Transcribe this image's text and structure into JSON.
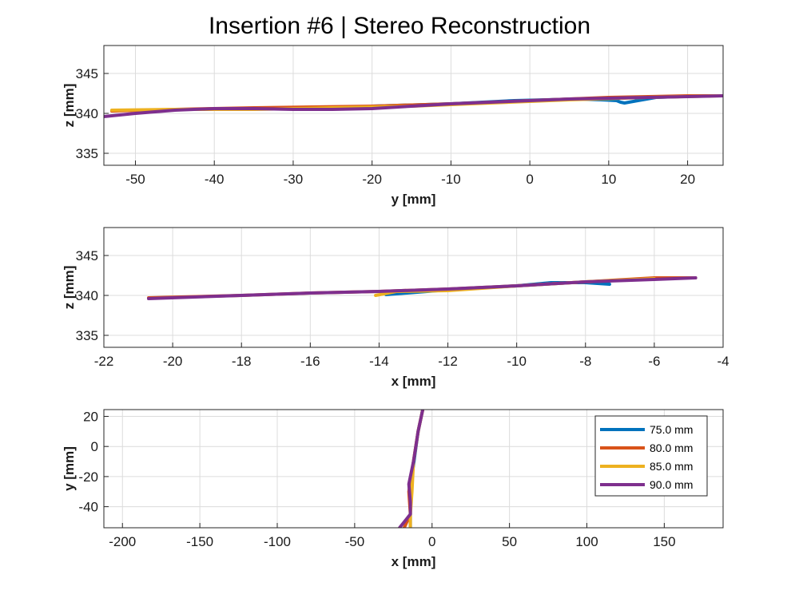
{
  "figure": {
    "title": "Insertion #6 | Stereo Reconstruction"
  },
  "series_colors": {
    "75.0 mm": "#0072bd",
    "80.0 mm": "#d95319",
    "85.0 mm": "#edb120",
    "90.0 mm": "#7e2f8e"
  },
  "chart_data": [
    {
      "type": "line",
      "xlabel": "y [mm]",
      "ylabel": "z [mm]",
      "xlim": [
        -54,
        24.5
      ],
      "ylim": [
        333.5,
        348.5
      ],
      "xticks": [
        -50,
        -40,
        -30,
        -20,
        -10,
        0,
        10,
        20
      ],
      "yticks": [
        335,
        340,
        345
      ],
      "grid": true,
      "series": [
        {
          "name": "75.0 mm",
          "points": [
            [
              -20,
              340.9
            ],
            [
              -10,
              341.2
            ],
            [
              -2,
              341.6
            ],
            [
              6,
              341.8
            ],
            [
              9,
              341.7
            ],
            [
              11,
              341.6
            ],
            [
              11.5,
              341.4
            ],
            [
              12,
              341.3
            ],
            [
              16,
              342.0
            ],
            [
              22,
              342.2
            ]
          ]
        },
        {
          "name": "80.0 mm",
          "points": [
            [
              -53,
              340.3
            ],
            [
              -45,
              340.5
            ],
            [
              -35,
              340.7
            ],
            [
              -20,
              340.9
            ],
            [
              -10,
              341.2
            ],
            [
              0,
              341.6
            ],
            [
              10,
              342.0
            ],
            [
              20,
              342.2
            ],
            [
              24.5,
              342.2
            ]
          ]
        },
        {
          "name": "85.0 mm",
          "points": [
            [
              -53,
              340.4
            ],
            [
              -45,
              340.5
            ],
            [
              -35,
              340.5
            ],
            [
              -25,
              340.7
            ],
            [
              -15,
              340.9
            ],
            [
              -5,
              341.3
            ],
            [
              5,
              341.7
            ],
            [
              15,
              342.0
            ],
            [
              24,
              342.2
            ]
          ]
        },
        {
          "name": "90.0 mm",
          "points": [
            [
              -54,
              339.6
            ],
            [
              -50,
              340.0
            ],
            [
              -45,
              340.4
            ],
            [
              -40,
              340.6
            ],
            [
              -35,
              340.6
            ],
            [
              -30,
              340.5
            ],
            [
              -25,
              340.5
            ],
            [
              -20,
              340.6
            ],
            [
              -15,
              340.9
            ],
            [
              -10,
              341.2
            ],
            [
              -5,
              341.4
            ],
            [
              0,
              341.6
            ],
            [
              5,
              341.8
            ],
            [
              10,
              341.9
            ],
            [
              15,
              342.0
            ],
            [
              20,
              342.1
            ],
            [
              24.5,
              342.2
            ]
          ]
        }
      ]
    },
    {
      "type": "line",
      "xlabel": "x [mm]",
      "ylabel": "z [mm]",
      "xlim": [
        -22,
        -4
      ],
      "ylim": [
        333.5,
        348.5
      ],
      "xticks": [
        -22,
        -20,
        -18,
        -16,
        -14,
        -12,
        -10,
        -8,
        -6,
        -4
      ],
      "yticks": [
        335,
        340,
        345
      ],
      "grid": true,
      "series": [
        {
          "name": "75.0 mm",
          "points": [
            [
              -13.8,
              340.1
            ],
            [
              -12,
              340.7
            ],
            [
              -10,
              341.2
            ],
            [
              -9,
              341.6
            ],
            [
              -8.5,
              341.6
            ],
            [
              -8,
              341.6
            ],
            [
              -7.3,
              341.4
            ]
          ]
        },
        {
          "name": "80.0 mm",
          "points": [
            [
              -20.7,
              339.7
            ],
            [
              -18,
              340.0
            ],
            [
              -16,
              340.3
            ],
            [
              -14,
              340.5
            ],
            [
              -12,
              340.8
            ],
            [
              -10,
              341.2
            ],
            [
              -8,
              341.7
            ],
            [
              -6,
              342.2
            ],
            [
              -4.8,
              342.2
            ]
          ]
        },
        {
          "name": "85.0 mm",
          "points": [
            [
              -14.1,
              340.0
            ],
            [
              -13.5,
              340.5
            ],
            [
              -12,
              340.6
            ],
            [
              -10,
              341.2
            ],
            [
              -8,
              341.7
            ],
            [
              -6,
              342.1
            ]
          ]
        },
        {
          "name": "90.0 mm",
          "points": [
            [
              -20.7,
              339.6
            ],
            [
              -18,
              340.0
            ],
            [
              -16,
              340.3
            ],
            [
              -14,
              340.5
            ],
            [
              -12,
              340.8
            ],
            [
              -10,
              341.2
            ],
            [
              -8,
              341.7
            ],
            [
              -6,
              342.0
            ],
            [
              -4.8,
              342.2
            ]
          ]
        }
      ]
    },
    {
      "type": "line",
      "xlabel": "x [mm]",
      "ylabel": "y [mm]",
      "xlim": [
        -212,
        188
      ],
      "ylim": [
        -54,
        24.5
      ],
      "xticks": [
        -200,
        -150,
        -100,
        -50,
        0,
        50,
        100,
        150
      ],
      "yticks": [
        -40,
        -20,
        0,
        20
      ],
      "grid": true,
      "legend": "top-right",
      "series": [
        {
          "name": "75.0 mm",
          "points": [
            [
              -14,
              -54
            ],
            [
              -14,
              -45
            ],
            [
              -14,
              -35
            ],
            [
              -13,
              -20
            ],
            [
              -11,
              -5
            ],
            [
              -9,
              10
            ],
            [
              -6,
              24.5
            ]
          ]
        },
        {
          "name": "80.0 mm",
          "points": [
            [
              -18,
              -54
            ],
            [
              -14,
              -45
            ],
            [
              -15,
              -30
            ],
            [
              -12,
              -10
            ],
            [
              -9,
              10
            ],
            [
              -6,
              24.5
            ]
          ]
        },
        {
          "name": "85.0 mm",
          "points": [
            [
              -14,
              -54
            ],
            [
              -14,
              -45
            ],
            [
              -13,
              -30
            ],
            [
              -12,
              -10
            ],
            [
              -9,
              10
            ],
            [
              -6,
              24.5
            ]
          ]
        },
        {
          "name": "90.0 mm",
          "points": [
            [
              -21,
              -54
            ],
            [
              -14,
              -45
            ],
            [
              -14,
              -37
            ],
            [
              -15,
              -25
            ],
            [
              -12,
              -10
            ],
            [
              -9,
              10
            ],
            [
              -6,
              24.5
            ]
          ]
        }
      ]
    }
  ]
}
